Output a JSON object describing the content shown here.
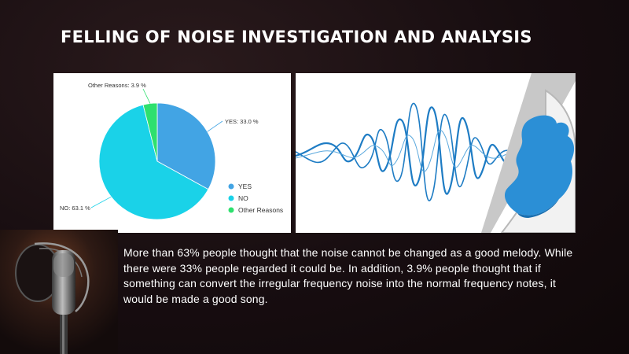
{
  "title": "FELLING OF NOISE INVESTIGATION AND ANALYSIS",
  "caption": "More than 63% people thought that the noise cannot be changed as a good melody. While there were 33% people regarded it could be. In addition, 3.9% people thought that if something can convert the irregular frequency noise into the normal frequency notes, it would be made a good song.",
  "chart_data": {
    "type": "pie",
    "title": "",
    "categories": [
      "YES",
      "NO",
      "Other Reasons"
    ],
    "values": [
      33.0,
      63.1,
      3.9
    ],
    "slice_labels": [
      "YES: 33.0 %",
      "NO: 63.1 %",
      "Other Reasons: 3.9 %"
    ],
    "colors": [
      "#42a4e4",
      "#1ad2e8",
      "#2ee06e"
    ],
    "legend": "bottom-right",
    "start": "12 o'clock, clockwise"
  },
  "colors": {
    "background": "#170d10",
    "title": "#ffffff",
    "caption": "#ffffff",
    "wave": "#1e7cc4"
  },
  "images": {
    "wave": "sound-wave-illustration",
    "mic": "studio-microphone-photo"
  }
}
